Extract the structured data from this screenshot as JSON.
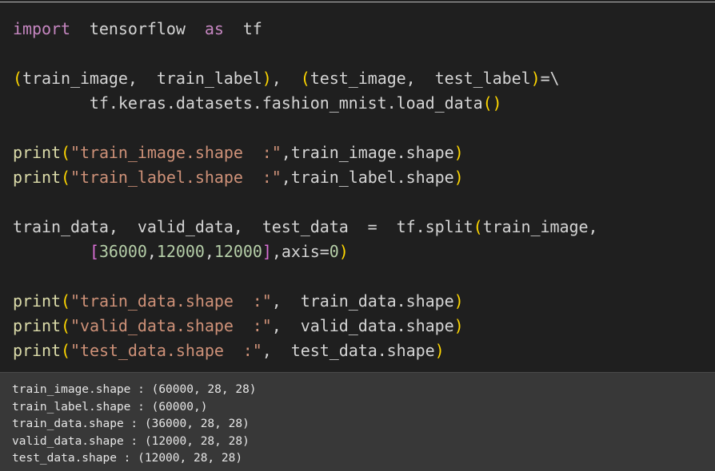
{
  "code_cell": {
    "lines": [
      [
        [
          "kw",
          "import"
        ],
        [
          "id",
          "  tensorflow  "
        ],
        [
          "kw",
          "as"
        ],
        [
          "id",
          "  tf"
        ]
      ],
      [],
      [
        [
          "p",
          "("
        ],
        [
          "id",
          "train_image,  train_label"
        ],
        [
          "p",
          ")"
        ],
        [
          "id",
          ",  "
        ],
        [
          "p",
          "("
        ],
        [
          "id",
          "test_image,  test_label"
        ],
        [
          "p",
          ")"
        ],
        [
          "id",
          "=\\"
        ]
      ],
      [
        [
          "id",
          "        tf.keras.datasets.fashion_mnist.load_data"
        ],
        [
          "p",
          "()"
        ]
      ],
      [],
      [
        [
          "fn",
          "print"
        ],
        [
          "p",
          "("
        ],
        [
          "str",
          "\"train_image.shape  :\""
        ],
        [
          "id",
          ",train_image.shape"
        ],
        [
          "p",
          ")"
        ]
      ],
      [
        [
          "fn",
          "print"
        ],
        [
          "p",
          "("
        ],
        [
          "str",
          "\"train_label.shape  :\""
        ],
        [
          "id",
          ",train_label.shape"
        ],
        [
          "p",
          ")"
        ]
      ],
      [],
      [
        [
          "id",
          "train_data,  valid_data,  test_data  =  tf.split"
        ],
        [
          "p",
          "("
        ],
        [
          "id",
          "train_image,"
        ]
      ],
      [
        [
          "id",
          "        "
        ],
        [
          "b",
          "["
        ],
        [
          "num",
          "36000"
        ],
        [
          "id",
          ","
        ],
        [
          "num",
          "12000"
        ],
        [
          "id",
          ","
        ],
        [
          "num",
          "12000"
        ],
        [
          "b",
          "]"
        ],
        [
          "id",
          ",axis="
        ],
        [
          "num",
          "0"
        ],
        [
          "p",
          ")"
        ]
      ],
      [],
      [
        [
          "fn",
          "print"
        ],
        [
          "p",
          "("
        ],
        [
          "str",
          "\"train_data.shape  :\""
        ],
        [
          "id",
          ",  train_data.shape"
        ],
        [
          "p",
          ")"
        ]
      ],
      [
        [
          "fn",
          "print"
        ],
        [
          "p",
          "("
        ],
        [
          "str",
          "\"valid_data.shape  :\""
        ],
        [
          "id",
          ",  valid_data.shape"
        ],
        [
          "p",
          ")"
        ]
      ],
      [
        [
          "fn",
          "print"
        ],
        [
          "p",
          "("
        ],
        [
          "str",
          "\"test_data.shape  :\""
        ],
        [
          "id",
          ",  test_data.shape"
        ],
        [
          "p",
          ")"
        ]
      ]
    ]
  },
  "output": {
    "lines": [
      "train_image.shape : (60000, 28, 28)",
      "train_label.shape : (60000,)",
      "train_data.shape : (36000, 28, 28)",
      "valid_data.shape : (12000, 28, 28)",
      "test_data.shape : (12000, 28, 28)"
    ]
  },
  "colors": {
    "code_bg": "#1f1f1f",
    "output_bg": "#383838",
    "keyword": "#c586c0",
    "function": "#dcdcaa",
    "string": "#ce9178",
    "paren": "#ffd700",
    "bracket": "#da70d6",
    "number": "#b5cea8"
  }
}
